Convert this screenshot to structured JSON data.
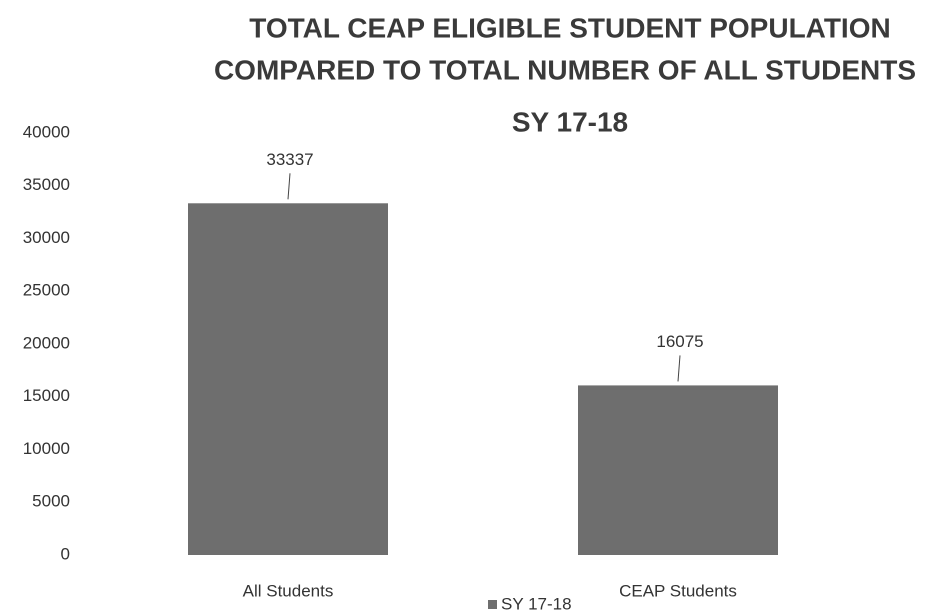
{
  "chart_data": {
    "type": "bar",
    "title": [
      "TOTAL CEAP ELIGIBLE STUDENT POPULATION",
      "COMPARED TO TOTAL NUMBER OF ALL STUDENTS",
      "SY 17-18"
    ],
    "categories": [
      "All Students",
      "CEAP Students"
    ],
    "series": [
      {
        "name": "SY 17-18",
        "color": "#6e6e6e",
        "values": [
          33337,
          16075
        ]
      }
    ],
    "ylim": [
      0,
      40000
    ],
    "yticks": [
      0,
      5000,
      10000,
      15000,
      20000,
      25000,
      30000,
      35000,
      40000
    ],
    "grid": false,
    "legend": "bottom"
  }
}
